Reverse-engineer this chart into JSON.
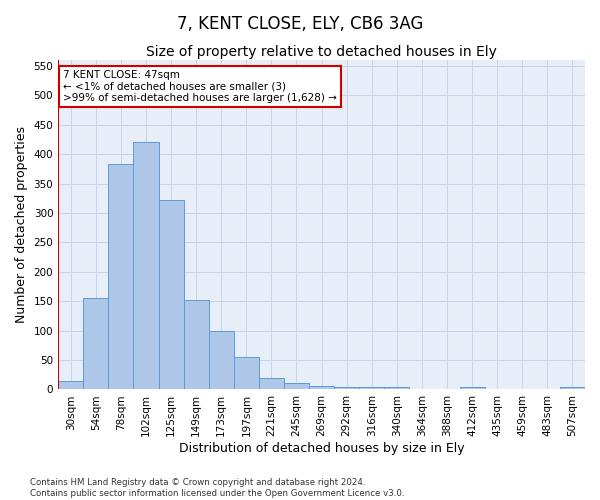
{
  "title": "7, KENT CLOSE, ELY, CB6 3AG",
  "subtitle": "Size of property relative to detached houses in Ely",
  "xlabel": "Distribution of detached houses by size in Ely",
  "ylabel": "Number of detached properties",
  "footnote": "Contains HM Land Registry data © Crown copyright and database right 2024.\nContains public sector information licensed under the Open Government Licence v3.0.",
  "bin_labels": [
    "30sqm",
    "54sqm",
    "78sqm",
    "102sqm",
    "125sqm",
    "149sqm",
    "173sqm",
    "197sqm",
    "221sqm",
    "245sqm",
    "269sqm",
    "292sqm",
    "316sqm",
    "340sqm",
    "364sqm",
    "388sqm",
    "412sqm",
    "435sqm",
    "459sqm",
    "483sqm",
    "507sqm"
  ],
  "bar_values": [
    15,
    155,
    383,
    420,
    323,
    152,
    100,
    55,
    20,
    11,
    6,
    5,
    5,
    5,
    1,
    1,
    4,
    1,
    1,
    1,
    4
  ],
  "bar_color": "#aec6e8",
  "bar_edge_color": "#5b9bd5",
  "highlight_color": "#cc0000",
  "annotation_text": "7 KENT CLOSE: 47sqm\n← <1% of detached houses are smaller (3)\n>99% of semi-detached houses are larger (1,628) →",
  "annotation_box_color": "#cc0000",
  "ylim": [
    0,
    560
  ],
  "yticks": [
    0,
    50,
    100,
    150,
    200,
    250,
    300,
    350,
    400,
    450,
    500,
    550
  ],
  "grid_color": "#c8d4e8",
  "background_color": "#e8eef8",
  "title_fontsize": 12,
  "subtitle_fontsize": 10,
  "axis_label_fontsize": 9,
  "tick_fontsize": 7.5
}
